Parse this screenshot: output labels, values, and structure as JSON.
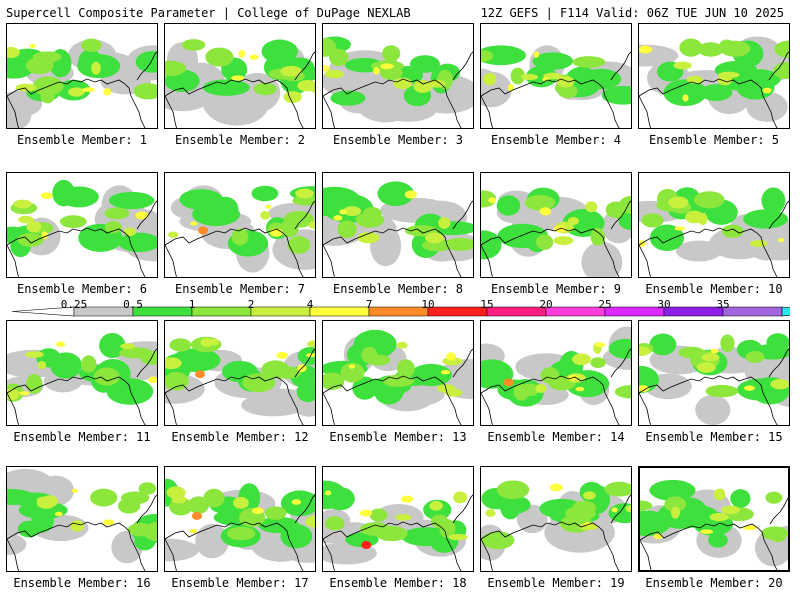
{
  "header": {
    "left": "Supercell Composite Parameter | College of DuPage NEXLAB",
    "right": "12Z GEFS | F114 Valid: 06Z TUE JUN 10 2025"
  },
  "legend": {
    "ticks": [
      "0.25",
      "0.5",
      "1",
      "2",
      "4",
      "7",
      "10",
      "15",
      "20",
      "25",
      "30",
      "35"
    ],
    "colors": [
      "#c8c8c8",
      "#3ee03e",
      "#8ce63c",
      "#c8f03c",
      "#ffff3c",
      "#ff8c28",
      "#ff1e1e",
      "#ff1e82",
      "#ff3cdc",
      "#dc28ff",
      "#8c1ee6",
      "#a064dc",
      "#28e6f0"
    ]
  },
  "panels": [
    {
      "label": "Ensemble Member: 1"
    },
    {
      "label": "Ensemble Member: 2"
    },
    {
      "label": "Ensemble Member: 3"
    },
    {
      "label": "Ensemble Member: 4"
    },
    {
      "label": "Ensemble Member: 5"
    },
    {
      "label": "Ensemble Member: 6"
    },
    {
      "label": "Ensemble Member: 7"
    },
    {
      "label": "Ensemble Member: 8"
    },
    {
      "label": "Ensemble Member: 9"
    },
    {
      "label": "Ensemble Member: 10"
    },
    {
      "label": "Ensemble Member: 11"
    },
    {
      "label": "Ensemble Member: 12"
    },
    {
      "label": "Ensemble Member: 13"
    },
    {
      "label": "Ensemble Member: 14"
    },
    {
      "label": "Ensemble Member: 15"
    },
    {
      "label": "Ensemble Member: 16"
    },
    {
      "label": "Ensemble Member: 17"
    },
    {
      "label": "Ensemble Member: 18"
    },
    {
      "label": "Ensemble Member: 19"
    },
    {
      "label": "Ensemble Member: 20",
      "selected": true
    }
  ]
}
